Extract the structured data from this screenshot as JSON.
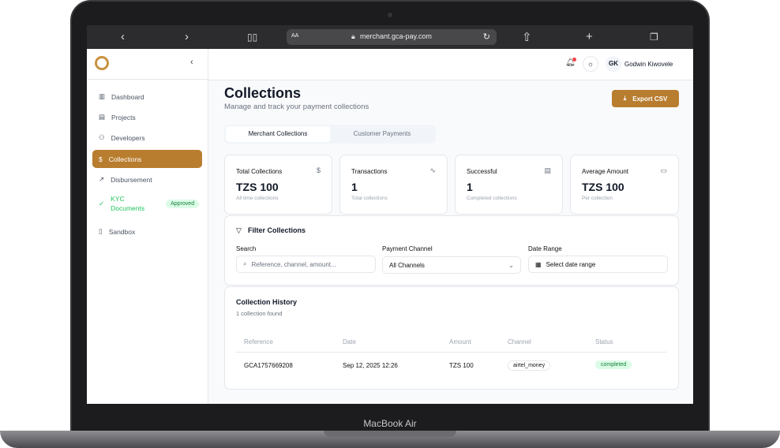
{
  "device": {
    "label": "MacBook Air"
  },
  "browser": {
    "url": "merchant.gca-pay.com",
    "text_size": "AA"
  },
  "header": {
    "user_initials": "GK",
    "user_name": "Godwin Kiwovele"
  },
  "sidebar": {
    "items": [
      {
        "label": "Dashboard",
        "icon": "bar-chart-icon"
      },
      {
        "label": "Projects",
        "icon": "briefcase-icon"
      },
      {
        "label": "Developers",
        "icon": "users-icon"
      },
      {
        "label": "Collections",
        "icon": "dollar-icon",
        "active": true
      },
      {
        "label": "Disbursement",
        "icon": "arrow-up-right-icon"
      },
      {
        "label": "KYC Documents",
        "icon": "check-circle-icon",
        "badge": "Approved"
      },
      {
        "label": "Sandbox",
        "icon": "phone-icon"
      }
    ]
  },
  "page": {
    "title": "Collections",
    "subtitle": "Manage and track your payment collections",
    "export_label": "Export CSV"
  },
  "tabs": [
    {
      "label": "Merchant Collections",
      "active": true
    },
    {
      "label": "Customer Payments"
    }
  ],
  "stats": [
    {
      "label": "Total Collections",
      "value": "TZS 100",
      "sub": "All time collections"
    },
    {
      "label": "Transactions",
      "value": "1",
      "sub": "Total collections"
    },
    {
      "label": "Successful",
      "value": "1",
      "sub": "Completed collections"
    },
    {
      "label": "Average Amount",
      "value": "TZS 100",
      "sub": "Per collection"
    }
  ],
  "filters": {
    "title": "Filter Collections",
    "search_label": "Search",
    "search_placeholder": "Reference, channel, amount...",
    "channel_label": "Payment Channel",
    "channel_value": "All Channels",
    "date_label": "Date Range",
    "date_placeholder": "Select date range"
  },
  "history": {
    "title": "Collection History",
    "count": "1 collection found",
    "columns": [
      "Reference",
      "Date",
      "Amount",
      "Channel",
      "Status"
    ],
    "rows": [
      {
        "reference": "GCA1757669208",
        "date": "Sep 12, 2025 12:26",
        "amount": "TZS 100",
        "channel": "airtel_money",
        "status": "completed"
      }
    ]
  },
  "colors": {
    "accent": "#b87d2f",
    "success": "#22c55e",
    "notification": "#ef4444"
  }
}
